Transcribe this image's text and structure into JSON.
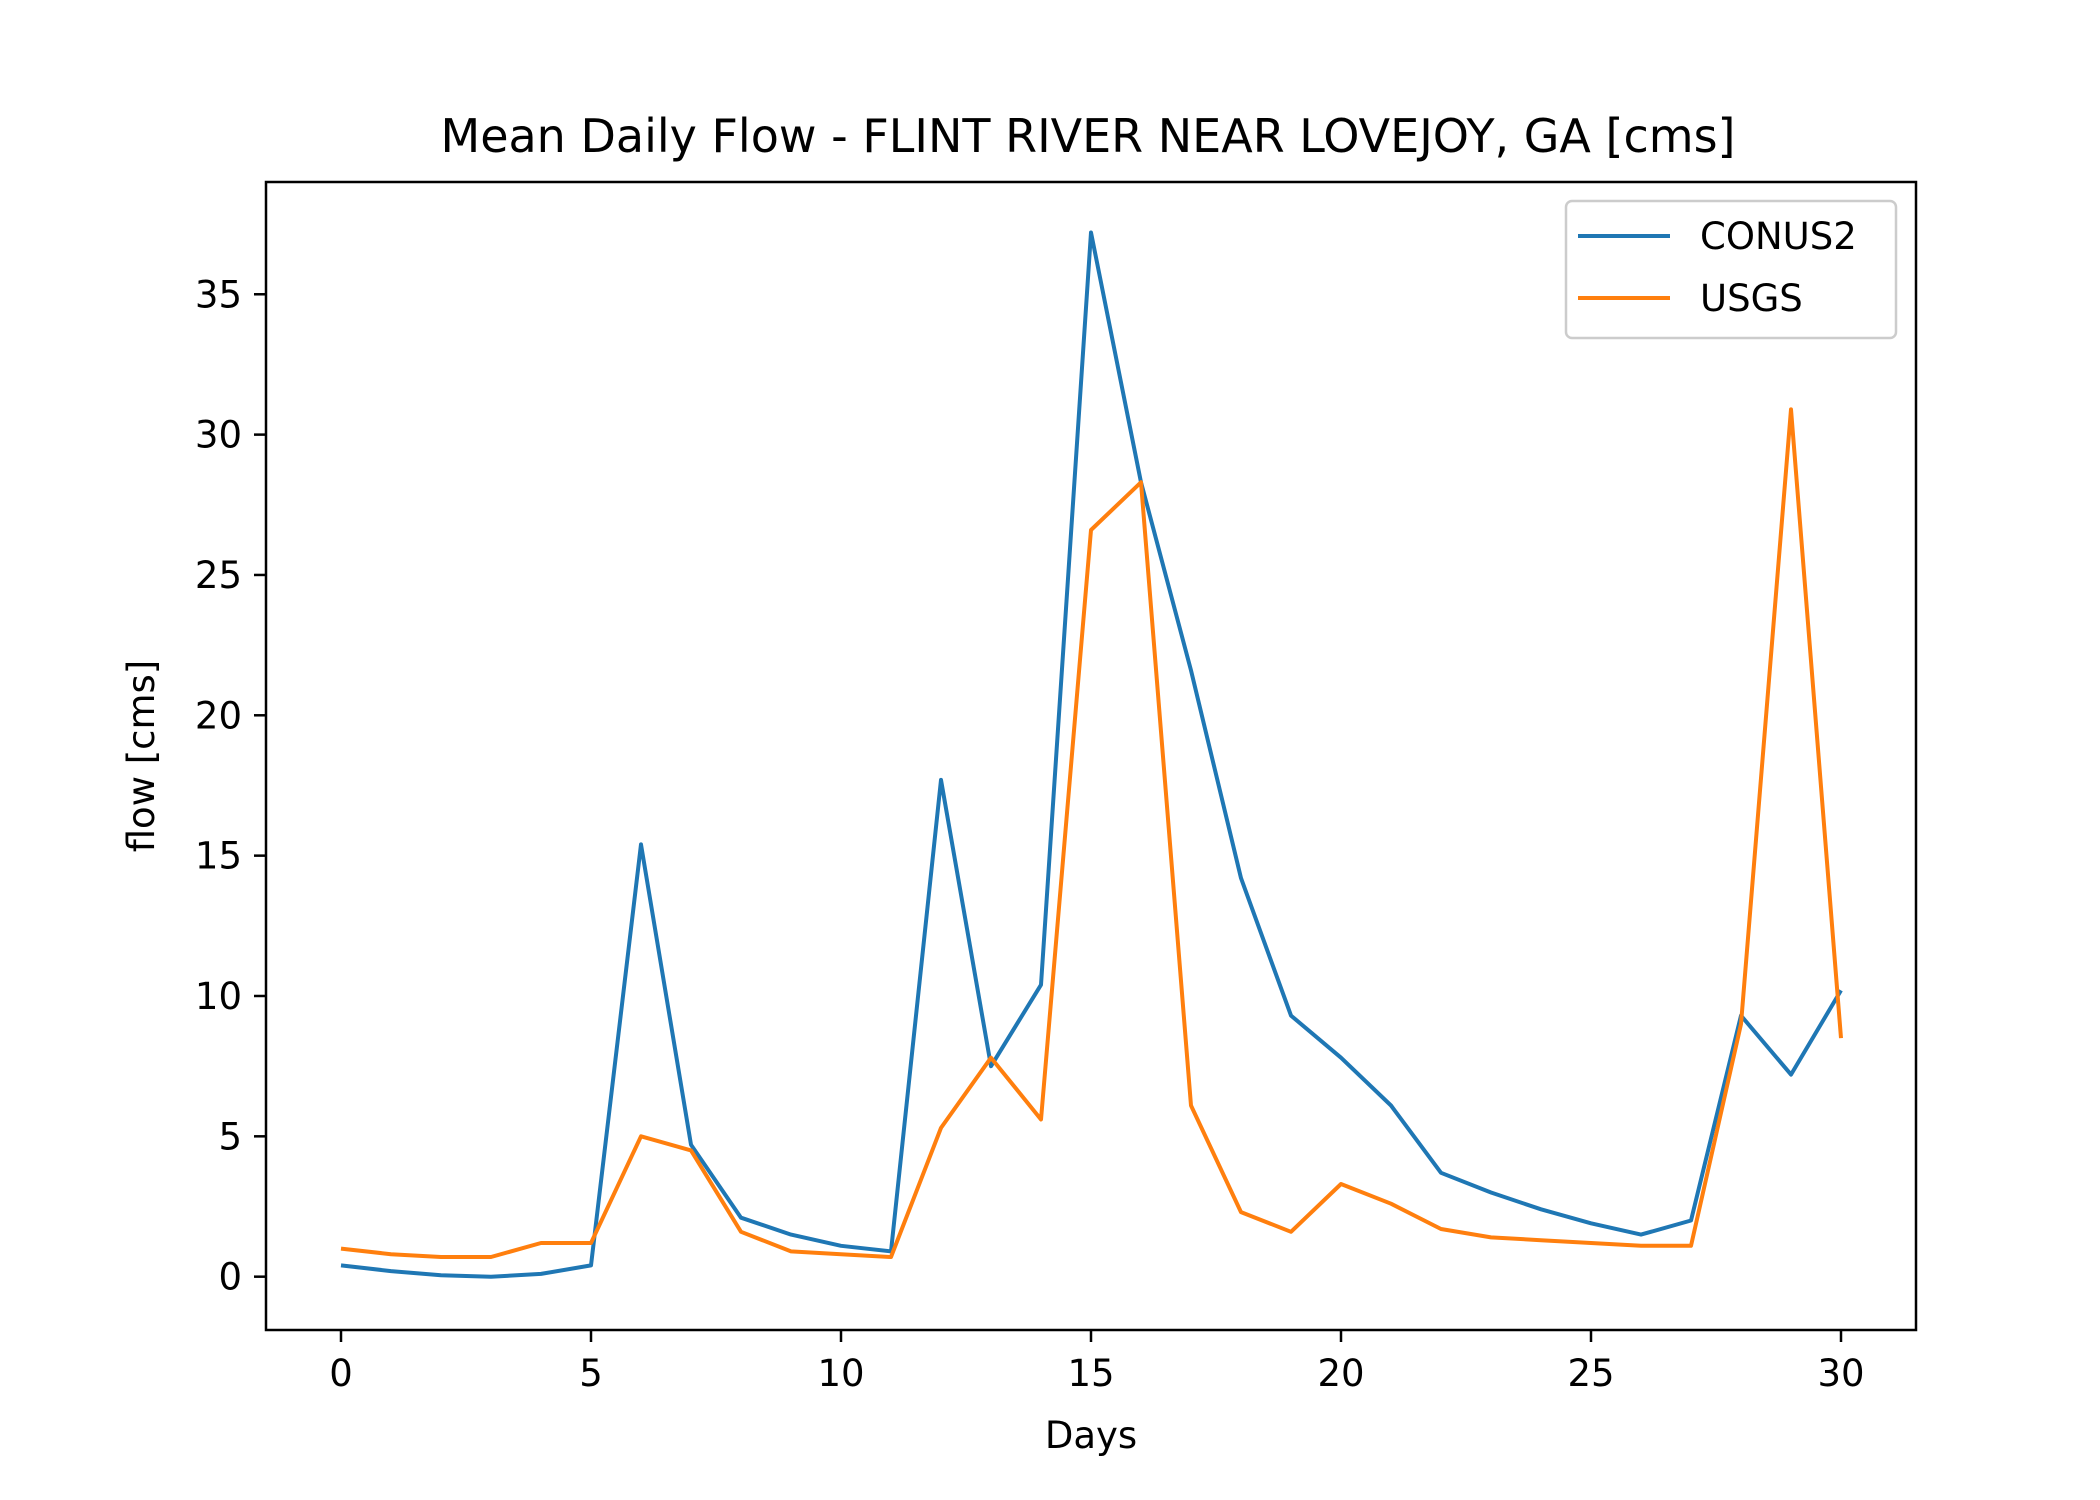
{
  "chart_data": {
    "type": "line",
    "title": "Mean Daily Flow - FLINT RIVER NEAR LOVEJOY, GA [cms]",
    "xlabel": "Days",
    "ylabel": "flow [cms]",
    "xlim": [
      -1.5,
      31.5
    ],
    "ylim": [
      -1.9,
      39.0
    ],
    "xticks": [
      0,
      5,
      10,
      15,
      20,
      25,
      30
    ],
    "yticks": [
      0,
      5,
      10,
      15,
      20,
      25,
      30,
      35
    ],
    "grid": false,
    "legend_position": "top-right",
    "x": [
      0,
      1,
      2,
      3,
      4,
      5,
      6,
      7,
      8,
      9,
      10,
      11,
      12,
      13,
      14,
      15,
      16,
      17,
      18,
      19,
      20,
      21,
      22,
      23,
      24,
      25,
      26,
      27,
      28,
      29,
      30
    ],
    "series": [
      {
        "name": "CONUS2",
        "color": "#1f77b4",
        "values": [
          0.4,
          0.2,
          0.05,
          0.0,
          0.1,
          0.4,
          15.4,
          4.7,
          2.1,
          1.5,
          1.1,
          0.9,
          17.7,
          7.5,
          10.4,
          37.2,
          28.3,
          21.6,
          14.2,
          9.3,
          7.8,
          6.1,
          3.7,
          3.0,
          2.4,
          1.9,
          1.5,
          2.0,
          9.3,
          7.2,
          10.2
        ]
      },
      {
        "name": "USGS",
        "color": "#ff7f0e",
        "values": [
          1.0,
          0.8,
          0.7,
          0.7,
          1.2,
          1.2,
          5.0,
          4.5,
          1.6,
          0.9,
          0.8,
          0.7,
          5.3,
          7.8,
          5.6,
          26.6,
          28.3,
          6.1,
          2.3,
          1.6,
          3.3,
          2.6,
          1.7,
          1.4,
          1.3,
          1.2,
          1.1,
          1.1,
          9.0,
          30.9,
          8.5
        ]
      }
    ]
  }
}
